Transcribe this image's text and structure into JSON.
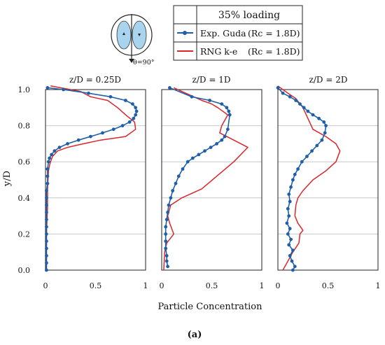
{
  "figure": {
    "caption": "(a)"
  },
  "legend": {
    "header": "35% loading",
    "exp_label": "Exp. Guda",
    "exp_rc": "(Rc = 1.8D)",
    "sim_label": "RNG k-e",
    "sim_rc": "(Rc = 1.8D)"
  },
  "inset": {
    "angle_label": "θ=90°"
  },
  "axes": {
    "ylabel": "y/D",
    "xlabel": "Particle Concentration",
    "yticks": [
      "0.0",
      "0.2",
      "0.4",
      "0.6",
      "0.8",
      "1.0"
    ],
    "xticks": [
      "0",
      "0.5",
      "1"
    ]
  },
  "colors": {
    "exp": "#1f5fa8",
    "sim": "#d9262b",
    "grid": "#c8c8c8",
    "inset_fill": "#a9d4ee"
  },
  "chart_data": [
    {
      "type": "line",
      "title": "z/D = 0.25D",
      "xlim": [
        0,
        1
      ],
      "ylim": [
        0,
        1
      ],
      "grid": "horizontal",
      "series": [
        {
          "name": "Exp. Guda (Rc = 1.8D)",
          "marker": "circle",
          "x": [
            0.01,
            0.01,
            0.01,
            0.01,
            0.01,
            0.01,
            0.01,
            0.01,
            0.01,
            0.01,
            0.01,
            0.01,
            0.02,
            0.02,
            0.02,
            0.03,
            0.04,
            0.06,
            0.09,
            0.14,
            0.22,
            0.33,
            0.45,
            0.57,
            0.68,
            0.77,
            0.84,
            0.88,
            0.9,
            0.91,
            0.9,
            0.87,
            0.8,
            0.65,
            0.43,
            0.18,
            0.02
          ],
          "y": [
            0.0,
            0.04,
            0.08,
            0.12,
            0.16,
            0.2,
            0.24,
            0.28,
            0.32,
            0.36,
            0.4,
            0.44,
            0.48,
            0.52,
            0.56,
            0.6,
            0.62,
            0.64,
            0.66,
            0.68,
            0.7,
            0.72,
            0.74,
            0.76,
            0.78,
            0.8,
            0.82,
            0.84,
            0.86,
            0.88,
            0.9,
            0.92,
            0.94,
            0.96,
            0.98,
            1.0,
            1.01
          ]
        },
        {
          "name": "RNG k-e (Rc = 1.8D)",
          "x": [
            0.01,
            0.01,
            0.02,
            0.02,
            0.03,
            0.04,
            0.05,
            0.07,
            0.12,
            0.22,
            0.38,
            0.55,
            0.8,
            0.9,
            0.89,
            0.8,
            0.72,
            0.62,
            0.45,
            0.35,
            0.05
          ],
          "y": [
            0.0,
            0.2,
            0.35,
            0.45,
            0.55,
            0.58,
            0.6,
            0.63,
            0.66,
            0.68,
            0.7,
            0.72,
            0.74,
            0.78,
            0.82,
            0.86,
            0.9,
            0.94,
            0.96,
            0.99,
            1.02
          ]
        }
      ]
    },
    {
      "type": "line",
      "title": "z/D = 1D",
      "xlim": [
        0,
        1
      ],
      "ylim": [
        0,
        1
      ],
      "grid": "horizontal",
      "series": [
        {
          "name": "Exp. Guda (Rc = 1.8D)",
          "marker": "circle",
          "x": [
            0.06,
            0.05,
            0.05,
            0.04,
            0.04,
            0.04,
            0.04,
            0.05,
            0.06,
            0.07,
            0.09,
            0.11,
            0.14,
            0.17,
            0.21,
            0.26,
            0.31,
            0.37,
            0.43,
            0.49,
            0.55,
            0.6,
            0.63,
            0.66,
            0.68,
            0.67,
            0.65,
            0.6,
            0.48,
            0.3,
            0.08
          ],
          "y": [
            0.02,
            0.05,
            0.08,
            0.12,
            0.16,
            0.2,
            0.24,
            0.28,
            0.32,
            0.36,
            0.4,
            0.44,
            0.48,
            0.52,
            0.56,
            0.6,
            0.62,
            0.64,
            0.66,
            0.68,
            0.7,
            0.72,
            0.74,
            0.78,
            0.86,
            0.88,
            0.9,
            0.92,
            0.94,
            0.96,
            1.01
          ]
        },
        {
          "name": "RNG k-e (Rc = 1.8D)",
          "x": [
            0.02,
            0.03,
            0.05,
            0.12,
            0.08,
            0.06,
            0.09,
            0.2,
            0.4,
            0.55,
            0.72,
            0.86,
            0.72,
            0.58,
            0.6,
            0.66,
            0.56,
            0.5,
            0.4,
            0.32,
            0.2,
            0.12
          ],
          "y": [
            0.0,
            0.1,
            0.15,
            0.2,
            0.26,
            0.3,
            0.36,
            0.4,
            0.45,
            0.52,
            0.6,
            0.68,
            0.72,
            0.76,
            0.8,
            0.86,
            0.9,
            0.92,
            0.94,
            0.96,
            0.99,
            1.01
          ]
        }
      ]
    },
    {
      "type": "line",
      "title": "z/D = 2D",
      "xlim": [
        0,
        1
      ],
      "ylim": [
        0,
        1
      ],
      "grid": "horizontal",
      "series": [
        {
          "name": "Exp. Guda (Rc = 1.8D)",
          "marker": "circle",
          "x": [
            0.15,
            0.17,
            0.14,
            0.12,
            0.15,
            0.11,
            0.13,
            0.1,
            0.12,
            0.09,
            0.11,
            0.1,
            0.12,
            0.11,
            0.13,
            0.15,
            0.17,
            0.2,
            0.24,
            0.29,
            0.34,
            0.39,
            0.44,
            0.47,
            0.48,
            0.46,
            0.41,
            0.35,
            0.3,
            0.26,
            0.22,
            0.18,
            0.12,
            0.05,
            0.0
          ],
          "y": [
            0.0,
            0.02,
            0.05,
            0.08,
            0.11,
            0.14,
            0.17,
            0.2,
            0.23,
            0.26,
            0.3,
            0.34,
            0.38,
            0.42,
            0.46,
            0.5,
            0.53,
            0.56,
            0.6,
            0.63,
            0.66,
            0.69,
            0.72,
            0.76,
            0.8,
            0.82,
            0.84,
            0.86,
            0.88,
            0.9,
            0.92,
            0.94,
            0.96,
            0.98,
            1.01
          ]
        },
        {
          "name": "RNG k-e (Rc = 1.8D)",
          "x": [
            0.05,
            0.1,
            0.15,
            0.21,
            0.22,
            0.25,
            0.2,
            0.17,
            0.18,
            0.2,
            0.25,
            0.35,
            0.48,
            0.58,
            0.62,
            0.58,
            0.48,
            0.35,
            0.3,
            0.25,
            0.18,
            0.1,
            0.0
          ],
          "y": [
            0.0,
            0.05,
            0.1,
            0.15,
            0.2,
            0.22,
            0.26,
            0.3,
            0.36,
            0.4,
            0.44,
            0.5,
            0.55,
            0.6,
            0.66,
            0.7,
            0.74,
            0.78,
            0.84,
            0.9,
            0.95,
            0.98,
            1.02
          ]
        }
      ]
    }
  ]
}
